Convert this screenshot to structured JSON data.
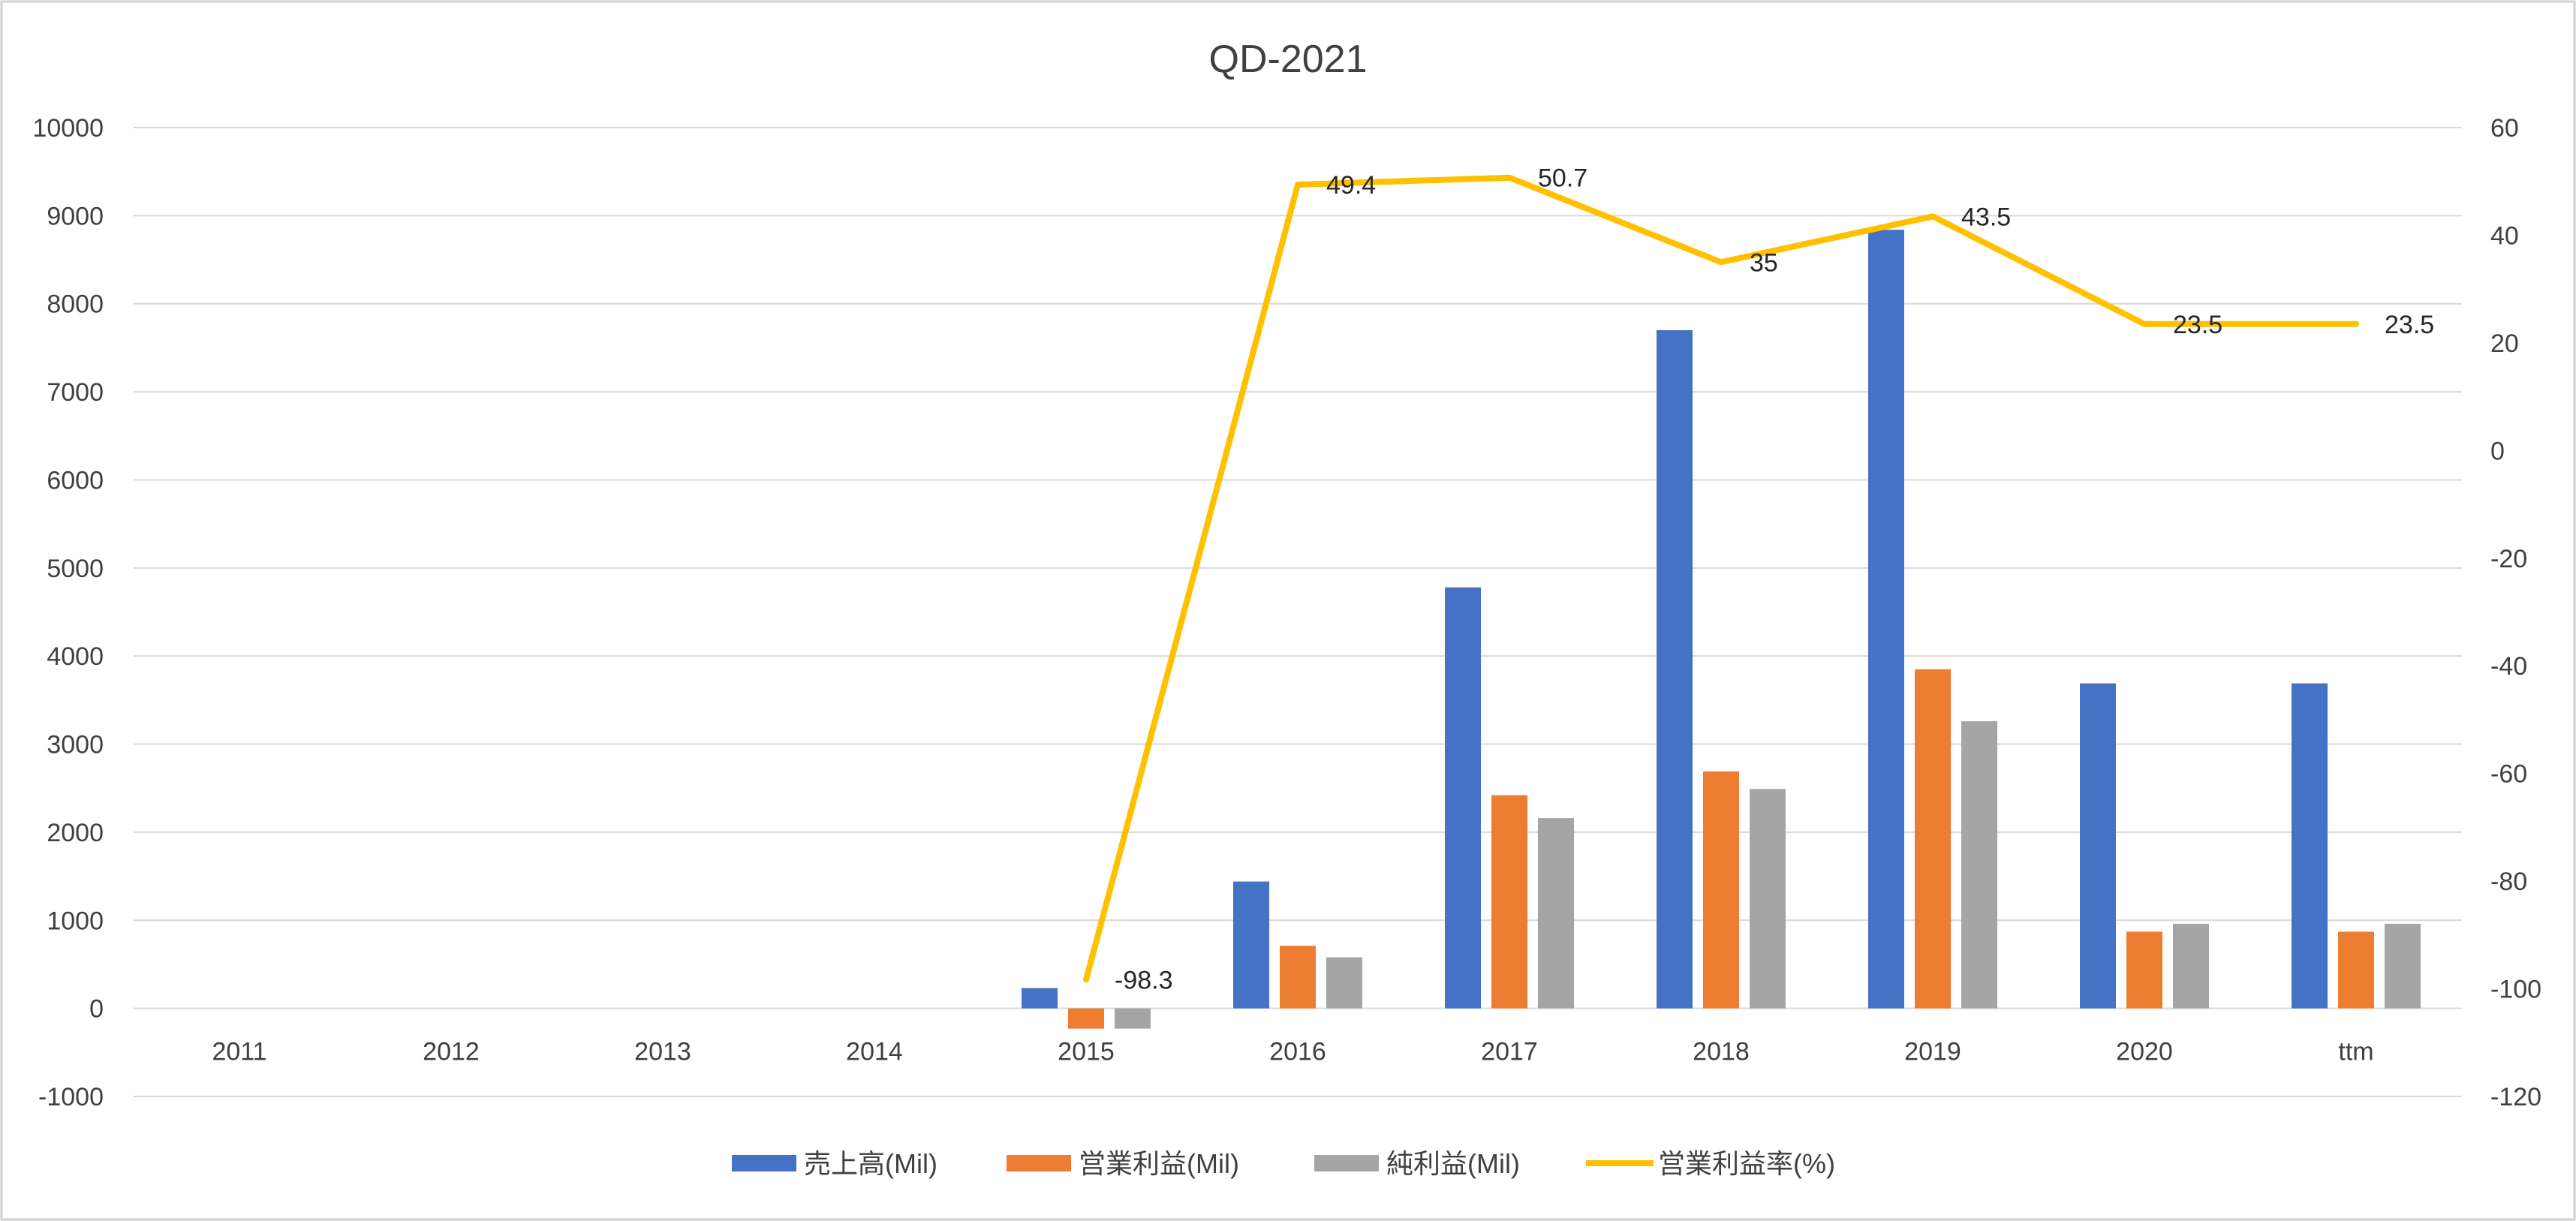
{
  "chart_data": {
    "type": "bar",
    "title": "QD-2021",
    "categories": [
      "2011",
      "2012",
      "2013",
      "2014",
      "2015",
      "2016",
      "2017",
      "2018",
      "2019",
      "2020",
      "ttm"
    ],
    "y_left": {
      "ylim": [
        -1000,
        10000
      ],
      "ticks": [
        -1000,
        0,
        1000,
        2000,
        3000,
        4000,
        5000,
        6000,
        7000,
        8000,
        9000,
        10000
      ]
    },
    "y_right": {
      "ylim": [
        -120,
        60
      ],
      "ticks": [
        -120,
        -100,
        -80,
        -60,
        -40,
        -20,
        0,
        20,
        40,
        60
      ]
    },
    "grid": true,
    "legend_position": "bottom",
    "series": [
      {
        "name": "売上高(Mil)",
        "type": "bar",
        "axis": "left",
        "color": "#4472C4",
        "values": [
          null,
          null,
          null,
          null,
          230,
          1440,
          4780,
          7700,
          8840,
          3690,
          3690
        ]
      },
      {
        "name": "営業利益(Mil)",
        "type": "bar",
        "axis": "left",
        "color": "#ED7D31",
        "values": [
          null,
          null,
          null,
          null,
          -230,
          710,
          2420,
          2690,
          3850,
          870,
          870
        ]
      },
      {
        "name": "純利益(Mil)",
        "type": "bar",
        "axis": "left",
        "color": "#A5A5A5",
        "values": [
          null,
          null,
          null,
          null,
          -230,
          580,
          2160,
          2490,
          3260,
          960,
          960
        ]
      },
      {
        "name": "営業利益率(%)",
        "type": "line",
        "axis": "right",
        "color": "#FFC000",
        "values": [
          null,
          null,
          null,
          null,
          -98.3,
          49.4,
          50.7,
          35,
          43.5,
          23.5,
          23.5
        ],
        "data_labels": [
          "",
          "",
          "",
          "",
          "-98.3",
          "49.4",
          "50.7",
          "35",
          "43.5",
          "23.5",
          "23.5"
        ],
        "negative_label_color": "#FF0000"
      }
    ]
  }
}
